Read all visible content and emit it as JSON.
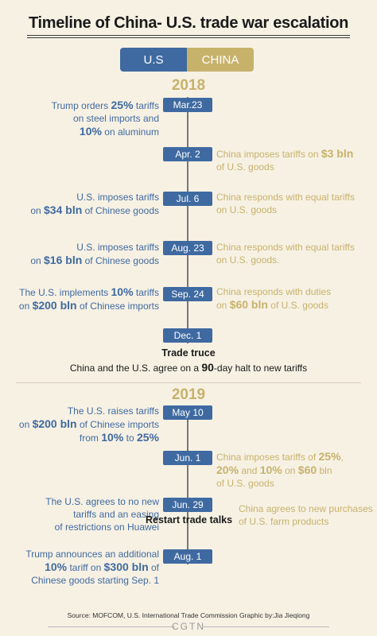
{
  "title": "Timeline of China- U.S. trade war escalation",
  "legend": {
    "us": "U.S",
    "china": "CHINA"
  },
  "colors": {
    "us": "#3f6aa1",
    "china": "#c7b26b",
    "background": "#f7f1e4"
  },
  "year_2018": "2018",
  "year_2019": "2019",
  "events": [
    {
      "date": "Mar.23",
      "us": [
        "Trump orders ",
        {
          "b": "25%"
        },
        " tariffs",
        "\n",
        "on steel imports and",
        "\n",
        {
          "b": "10%"
        },
        " on aluminum"
      ],
      "cn": []
    },
    {
      "date": "Apr. 2",
      "us": [],
      "cn": [
        "China imposes tariffs on ",
        {
          "b": "$3 bln"
        },
        "\n",
        "of U.S. goods"
      ]
    },
    {
      "date": "Jul. 6",
      "us": [
        "U.S. imposes tariffs",
        "\n",
        "on ",
        {
          "b": "$34 bln"
        },
        " of Chinese goods"
      ],
      "cn": [
        "China responds with equal tariffs",
        "\n",
        "on U.S. goods"
      ]
    },
    {
      "date": "Aug. 23",
      "us": [
        "U.S. imposes tariffs",
        "\n",
        "on ",
        {
          "b": "$16 bln"
        },
        " of Chinese goods"
      ],
      "cn": [
        "China responds with equal tariffs",
        "\n",
        "on U.S. goods."
      ]
    },
    {
      "date": "Sep. 24",
      "us": [
        "The U.S. implements ",
        {
          "b": "10%"
        },
        " tariffs",
        "\n",
        "on ",
        {
          "b": "$200 bln"
        },
        " of Chinese imports"
      ],
      "cn": [
        "China responds with duties",
        "\n",
        "on ",
        {
          "b": "$60 bln"
        },
        " of U.S. goods"
      ]
    },
    {
      "date": "Dec. 1",
      "us": [],
      "cn": []
    },
    {
      "date": "May 10",
      "us": [
        "The U.S. raises tariffs",
        "\n",
        "on ",
        {
          "b": "$200 bln"
        },
        " of Chinese imports",
        "\n",
        "from ",
        {
          "b": "10%"
        },
        " to ",
        {
          "b": "25%"
        }
      ],
      "cn": []
    },
    {
      "date": "Jun. 1",
      "us": [],
      "cn": [
        "China imposes tariffs of ",
        {
          "b": "25%"
        },
        ",",
        "\n",
        {
          "b": "20%"
        },
        " and ",
        {
          "b": "10%"
        },
        " on ",
        {
          "b": "$60"
        },
        " bln",
        "\n",
        "of U.S. goods"
      ]
    },
    {
      "date": "Jun. 29",
      "us": [
        "The U.S. agrees to no new",
        "\n",
        "tariffs and an easing",
        "\n",
        "of restrictions on Huawei"
      ],
      "cn": [
        "China agrees to new purchases",
        "\n",
        "of U.S. farm products"
      ]
    },
    {
      "date": "Aug. 1",
      "us": [
        "Trump announces an additional",
        "\n",
        {
          "b": "10%"
        },
        " tariff on ",
        {
          "b": "$300 bln"
        },
        " of",
        "\n",
        "Chinese goods starting Sep. 1"
      ],
      "cn": []
    }
  ],
  "truce": {
    "heading": "Trade truce",
    "text_pre": "China and the U.S. agree on a ",
    "text_bold": "90",
    "text_post": "-day halt to new tariffs"
  },
  "restart": "Restart trade talks",
  "source": "Source: MOFCOM, U.S. International Trade Commission Graphic by:Jia Jieqiong",
  "logo": "CGTN"
}
